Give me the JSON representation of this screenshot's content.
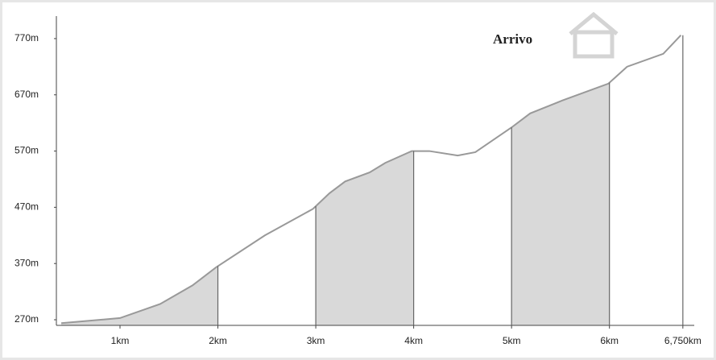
{
  "chart_data": {
    "type": "area",
    "annotation": "Arrivo",
    "x": [
      0.4,
      1.0,
      1.41,
      1.74,
      1.98,
      2.48,
      2.97,
      3.14,
      3.3,
      3.55,
      3.71,
      3.98,
      4.16,
      4.45,
      4.63,
      5.0,
      5.19,
      5.52,
      5.99,
      6.18,
      6.55,
      6.73
    ],
    "series": [
      {
        "color": "#999999",
        "values": [
          264,
          273,
          298,
          331,
          363,
          420,
          467,
          495,
          516,
          532,
          549,
          570,
          570,
          562,
          568,
          612,
          637,
          660,
          690,
          720,
          743,
          776
        ]
      }
    ],
    "fill_color": "#d9d9d9",
    "xlim": [
      0.35,
      6.85
    ],
    "ylim": [
      260,
      810
    ],
    "xticks": [
      {
        "value": 1,
        "label": "1km"
      },
      {
        "value": 2,
        "label": "2km"
      },
      {
        "value": 3,
        "label": "3km"
      },
      {
        "value": 4,
        "label": "4km"
      },
      {
        "value": 5,
        "label": "5km"
      },
      {
        "value": 6,
        "label": "6km"
      },
      {
        "value": 6.75,
        "label": "6,750km"
      }
    ],
    "yticks": [
      {
        "value": 270,
        "label": "270m"
      },
      {
        "value": 370,
        "label": "370m"
      },
      {
        "value": 470,
        "label": "470m"
      },
      {
        "value": 570,
        "label": "570m"
      },
      {
        "value": 670,
        "label": "670m"
      },
      {
        "value": 770,
        "label": "770m"
      }
    ]
  }
}
